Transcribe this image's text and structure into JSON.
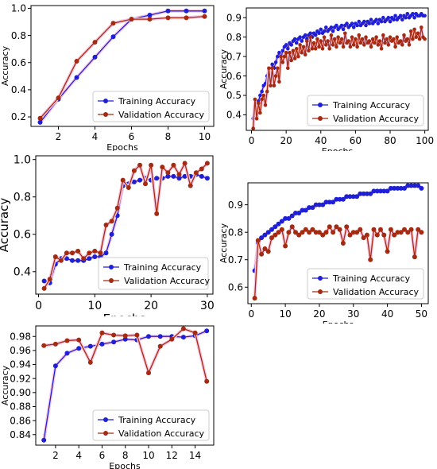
{
  "colors": {
    "training": "#1f1fd6",
    "validation": "#a52a12",
    "halo": "#f7c6df"
  },
  "chart_data": [
    {
      "type": "line",
      "xlabel": "Epochs",
      "ylabel": "Accuracy",
      "xlim": [
        0.5,
        10.5
      ],
      "ylim": [
        0.13,
        1.02
      ],
      "xticks": [
        2,
        4,
        6,
        8,
        10
      ],
      "yticks": [
        0.2,
        0.4,
        0.6,
        0.8,
        1.0
      ],
      "yticklabels": [
        "0.2",
        "0.4",
        "0.6",
        "0.8",
        "1.0"
      ],
      "legend": "lower-right",
      "series": [
        {
          "name": "Training Accuracy",
          "x": [
            1,
            2,
            3,
            4,
            5,
            6,
            7,
            8,
            9,
            10
          ],
          "values": [
            0.16,
            0.33,
            0.49,
            0.64,
            0.79,
            0.92,
            0.95,
            0.98,
            0.98,
            0.98
          ]
        },
        {
          "name": "Validation Accuracy",
          "x": [
            1,
            2,
            3,
            4,
            5,
            6,
            7,
            8,
            9,
            10
          ],
          "values": [
            0.19,
            0.34,
            0.61,
            0.75,
            0.89,
            0.92,
            0.92,
            0.93,
            0.93,
            0.94
          ]
        }
      ]
    },
    {
      "type": "line",
      "xlabel": "Epochs",
      "ylabel": "Accuracy",
      "xlim": [
        -3,
        102
      ],
      "ylim": [
        0.32,
        0.95
      ],
      "xticks": [
        0,
        20,
        40,
        60,
        80,
        100
      ],
      "yticks": [
        0.4,
        0.5,
        0.6,
        0.7,
        0.8,
        0.9
      ],
      "yticklabels": [
        "0.4",
        "0.5",
        "0.6",
        "0.7",
        "0.8",
        "0.9"
      ],
      "legend": "lower-right",
      "series": [
        {
          "name": "Training Accuracy",
          "x": [
            1,
            2,
            3,
            4,
            5,
            6,
            7,
            8,
            9,
            10,
            11,
            12,
            13,
            14,
            15,
            16,
            17,
            18,
            19,
            20,
            21,
            22,
            23,
            24,
            25,
            26,
            27,
            28,
            29,
            30,
            31,
            32,
            33,
            34,
            35,
            36,
            37,
            38,
            39,
            40,
            41,
            42,
            43,
            44,
            45,
            46,
            47,
            48,
            49,
            50,
            51,
            52,
            53,
            54,
            55,
            56,
            57,
            58,
            59,
            60,
            61,
            62,
            63,
            64,
            65,
            66,
            67,
            68,
            69,
            70,
            71,
            72,
            73,
            74,
            75,
            76,
            77,
            78,
            79,
            80,
            81,
            82,
            83,
            84,
            85,
            86,
            87,
            88,
            89,
            90,
            91,
            92,
            93,
            94,
            95,
            96,
            97,
            98,
            99,
            100
          ],
          "values": [
            0.38,
            0.44,
            0.46,
            0.47,
            0.5,
            0.52,
            0.55,
            0.56,
            0.6,
            0.63,
            0.61,
            0.66,
            0.64,
            0.67,
            0.7,
            0.72,
            0.69,
            0.73,
            0.75,
            0.76,
            0.74,
            0.77,
            0.76,
            0.78,
            0.79,
            0.77,
            0.79,
            0.8,
            0.78,
            0.8,
            0.81,
            0.79,
            0.81,
            0.82,
            0.8,
            0.82,
            0.81,
            0.83,
            0.82,
            0.84,
            0.82,
            0.83,
            0.85,
            0.83,
            0.84,
            0.85,
            0.83,
            0.85,
            0.86,
            0.84,
            0.85,
            0.86,
            0.84,
            0.86,
            0.87,
            0.85,
            0.86,
            0.87,
            0.85,
            0.87,
            0.86,
            0.88,
            0.86,
            0.87,
            0.88,
            0.86,
            0.88,
            0.87,
            0.89,
            0.87,
            0.88,
            0.89,
            0.87,
            0.89,
            0.88,
            0.9,
            0.88,
            0.89,
            0.9,
            0.88,
            0.9,
            0.89,
            0.91,
            0.89,
            0.9,
            0.91,
            0.89,
            0.91,
            0.9,
            0.92,
            0.9,
            0.91,
            0.92,
            0.9,
            0.92,
            0.91,
            0.91,
            0.92,
            0.91,
            0.91
          ]
        },
        {
          "name": "Validation Accuracy",
          "x": [
            1,
            2,
            3,
            4,
            5,
            6,
            7,
            8,
            9,
            10,
            11,
            12,
            13,
            14,
            15,
            16,
            17,
            18,
            19,
            20,
            21,
            22,
            23,
            24,
            25,
            26,
            27,
            28,
            29,
            30,
            31,
            32,
            33,
            34,
            35,
            36,
            37,
            38,
            39,
            40,
            41,
            42,
            43,
            44,
            45,
            46,
            47,
            48,
            49,
            50,
            51,
            52,
            53,
            54,
            55,
            56,
            57,
            58,
            59,
            60,
            61,
            62,
            63,
            64,
            65,
            66,
            67,
            68,
            69,
            70,
            71,
            72,
            73,
            74,
            75,
            76,
            77,
            78,
            79,
            80,
            81,
            82,
            83,
            84,
            85,
            86,
            87,
            88,
            89,
            90,
            91,
            92,
            93,
            94,
            95,
            96,
            97,
            98,
            99,
            100
          ],
          "values": [
            0.33,
            0.48,
            0.38,
            0.46,
            0.41,
            0.48,
            0.5,
            0.45,
            0.52,
            0.64,
            0.55,
            0.64,
            0.55,
            0.6,
            0.64,
            0.57,
            0.7,
            0.67,
            0.7,
            0.72,
            0.64,
            0.72,
            0.68,
            0.73,
            0.69,
            0.74,
            0.7,
            0.76,
            0.72,
            0.75,
            0.71,
            0.78,
            0.73,
            0.8,
            0.74,
            0.77,
            0.74,
            0.79,
            0.75,
            0.78,
            0.74,
            0.8,
            0.76,
            0.78,
            0.74,
            0.81,
            0.76,
            0.79,
            0.75,
            0.8,
            0.77,
            0.79,
            0.75,
            0.82,
            0.77,
            0.78,
            0.75,
            0.8,
            0.76,
            0.79,
            0.75,
            0.81,
            0.77,
            0.79,
            0.76,
            0.8,
            0.77,
            0.78,
            0.75,
            0.79,
            0.77,
            0.8,
            0.76,
            0.78,
            0.74,
            0.81,
            0.77,
            0.79,
            0.76,
            0.8,
            0.78,
            0.79,
            0.75,
            0.8,
            0.77,
            0.78,
            0.76,
            0.81,
            0.78,
            0.79,
            0.76,
            0.83,
            0.79,
            0.84,
            0.8,
            0.82,
            0.79,
            0.85,
            0.8,
            0.79
          ]
        }
      ]
    },
    {
      "type": "line",
      "xlabel": "Epochs",
      "ylabel": "Accuracy",
      "xlim": [
        -0.5,
        31
      ],
      "ylim": [
        0.28,
        1.02
      ],
      "xticks": [
        0,
        10,
        20,
        30
      ],
      "yticks": [
        0.4,
        0.6,
        0.8,
        1.0
      ],
      "yticklabels": [
        "0.4",
        "0.6",
        "0.8",
        "1.0"
      ],
      "legend": "lower-right",
      "series": [
        {
          "name": "Training Accuracy",
          "x": [
            1,
            2,
            3,
            4,
            5,
            6,
            7,
            8,
            9,
            10,
            11,
            12,
            13,
            14,
            15,
            16,
            17,
            18,
            19,
            20,
            21,
            22,
            23,
            24,
            25,
            26,
            27,
            28,
            29,
            30
          ],
          "values": [
            0.35,
            0.34,
            0.44,
            0.47,
            0.47,
            0.46,
            0.46,
            0.46,
            0.47,
            0.48,
            0.48,
            0.5,
            0.6,
            0.7,
            0.86,
            0.87,
            0.88,
            0.89,
            0.9,
            0.89,
            0.9,
            0.9,
            0.91,
            0.91,
            0.9,
            0.91,
            0.91,
            0.92,
            0.91,
            0.9
          ]
        },
        {
          "name": "Validation Accuracy",
          "x": [
            1,
            2,
            3,
            4,
            5,
            6,
            7,
            8,
            9,
            10,
            11,
            12,
            13,
            14,
            15,
            16,
            17,
            18,
            19,
            20,
            21,
            22,
            23,
            24,
            25,
            26,
            27,
            28,
            29,
            30
          ],
          "values": [
            0.31,
            0.36,
            0.48,
            0.46,
            0.5,
            0.5,
            0.51,
            0.47,
            0.5,
            0.51,
            0.5,
            0.65,
            0.67,
            0.74,
            0.89,
            0.85,
            0.94,
            0.97,
            0.87,
            0.97,
            0.71,
            0.96,
            0.93,
            0.97,
            0.92,
            0.98,
            0.86,
            0.93,
            0.95,
            0.98
          ]
        }
      ]
    },
    {
      "type": "line",
      "xlabel": "Epochs",
      "ylabel": "Accuracy",
      "xlim": [
        -1,
        52
      ],
      "ylim": [
        0.54,
        0.98
      ],
      "xticks": [
        0,
        10,
        20,
        30,
        40,
        50
      ],
      "yticks": [
        0.6,
        0.7,
        0.8,
        0.9
      ],
      "yticklabels": [
        "0.6",
        "0.7",
        "0.8",
        "0.9"
      ],
      "legend": "lower-right",
      "series": [
        {
          "name": "Training Accuracy",
          "x": [
            1,
            2,
            3,
            4,
            5,
            6,
            7,
            8,
            9,
            10,
            11,
            12,
            13,
            14,
            15,
            16,
            17,
            18,
            19,
            20,
            21,
            22,
            23,
            24,
            25,
            26,
            27,
            28,
            29,
            30,
            31,
            32,
            33,
            34,
            35,
            36,
            37,
            38,
            39,
            40,
            41,
            42,
            43,
            44,
            45,
            46,
            47,
            48,
            49,
            50
          ],
          "values": [
            0.66,
            0.76,
            0.78,
            0.79,
            0.8,
            0.81,
            0.82,
            0.83,
            0.84,
            0.85,
            0.85,
            0.86,
            0.87,
            0.87,
            0.88,
            0.88,
            0.89,
            0.89,
            0.9,
            0.9,
            0.9,
            0.91,
            0.91,
            0.91,
            0.92,
            0.92,
            0.92,
            0.93,
            0.93,
            0.93,
            0.93,
            0.94,
            0.94,
            0.94,
            0.94,
            0.95,
            0.95,
            0.95,
            0.95,
            0.95,
            0.96,
            0.96,
            0.96,
            0.96,
            0.96,
            0.97,
            0.97,
            0.97,
            0.97,
            0.96
          ]
        },
        {
          "name": "Validation Accuracy",
          "x": [
            1,
            2,
            3,
            4,
            5,
            6,
            7,
            8,
            9,
            10,
            11,
            12,
            13,
            14,
            15,
            16,
            17,
            18,
            19,
            20,
            21,
            22,
            23,
            24,
            25,
            26,
            27,
            28,
            29,
            30,
            31,
            32,
            33,
            34,
            35,
            36,
            37,
            38,
            39,
            40,
            41,
            42,
            43,
            44,
            45,
            46,
            47,
            48,
            49,
            50
          ],
          "values": [
            0.56,
            0.77,
            0.72,
            0.74,
            0.73,
            0.78,
            0.79,
            0.8,
            0.81,
            0.75,
            0.8,
            0.82,
            0.8,
            0.79,
            0.8,
            0.81,
            0.8,
            0.81,
            0.8,
            0.8,
            0.79,
            0.8,
            0.82,
            0.8,
            0.82,
            0.81,
            0.76,
            0.82,
            0.79,
            0.8,
            0.8,
            0.81,
            0.78,
            0.79,
            0.7,
            0.81,
            0.79,
            0.81,
            0.79,
            0.73,
            0.81,
            0.79,
            0.8,
            0.8,
            0.81,
            0.8,
            0.81,
            0.71,
            0.81,
            0.8
          ]
        }
      ]
    },
    {
      "type": "line",
      "xlabel": "Epochs",
      "ylabel": "Accuracy",
      "xlim": [
        0.3,
        15.6
      ],
      "ylim": [
        0.825,
        0.995
      ],
      "xticks": [
        2,
        4,
        6,
        8,
        10,
        12,
        14
      ],
      "yticks": [
        0.84,
        0.86,
        0.88,
        0.9,
        0.92,
        0.94,
        0.96,
        0.98
      ],
      "yticklabels": [
        "0.84",
        "0.86",
        "0.88",
        "0.90",
        "0.92",
        "0.94",
        "0.96",
        "0.98"
      ],
      "legend": "lower-right",
      "series": [
        {
          "name": "Training Accuracy",
          "x": [
            1,
            2,
            3,
            4,
            5,
            6,
            7,
            8,
            9,
            10,
            11,
            12,
            13,
            14,
            15
          ],
          "values": [
            0.832,
            0.938,
            0.956,
            0.963,
            0.966,
            0.969,
            0.972,
            0.976,
            0.975,
            0.98,
            0.98,
            0.98,
            0.979,
            0.981,
            0.988
          ]
        },
        {
          "name": "Validation Accuracy",
          "x": [
            1,
            2,
            3,
            4,
            5,
            6,
            7,
            8,
            9,
            10,
            11,
            12,
            13,
            14,
            15
          ],
          "values": [
            0.967,
            0.969,
            0.974,
            0.975,
            0.943,
            0.985,
            0.982,
            0.981,
            0.982,
            0.928,
            0.966,
            0.976,
            0.991,
            0.985,
            0.916
          ]
        }
      ]
    }
  ]
}
